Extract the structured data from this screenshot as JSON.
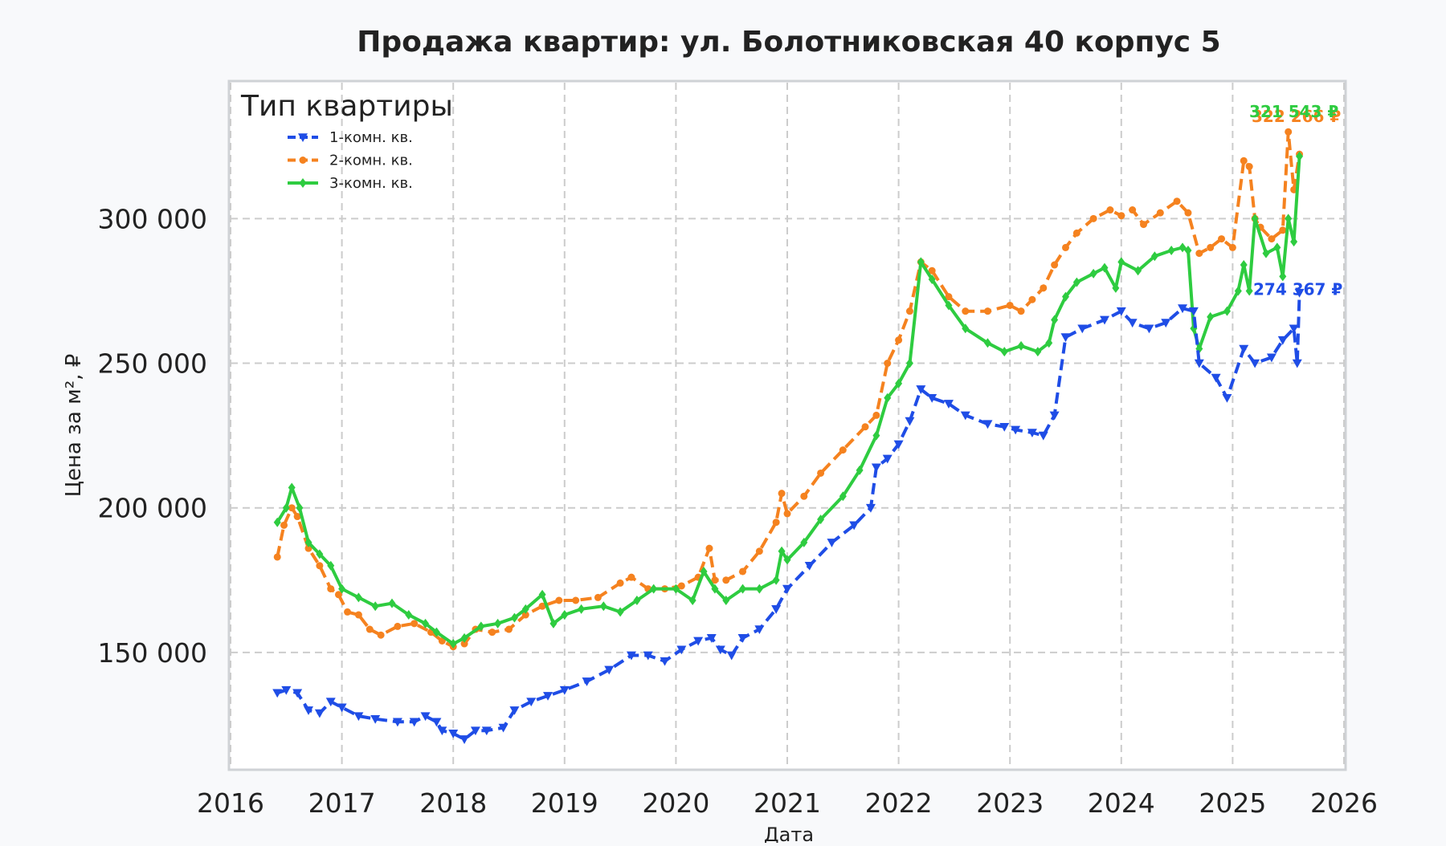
{
  "chart_data": {
    "type": "line",
    "title": "Продажа квартир: ул. Болотниковская 40 корпус 5",
    "xlabel": "Дата",
    "ylabel": "Цена за м², ₽",
    "xlim": [
      2016.0,
      2026.0
    ],
    "ylim": [
      110000,
      347000
    ],
    "xticks": [
      2016,
      2017,
      2018,
      2019,
      2020,
      2021,
      2022,
      2023,
      2024,
      2025,
      2026
    ],
    "yticks": [
      150000,
      200000,
      250000,
      300000
    ],
    "ytick_labels": [
      "150 000",
      "200 000",
      "250 000",
      "300 000"
    ],
    "grid": true,
    "legend": {
      "title": "Тип квартиры",
      "position": "top-left"
    },
    "series": [
      {
        "name": "1-комн. кв.",
        "color": "#1f4de6",
        "line_style": "dashed",
        "marker": "triangle-down",
        "end_label": "274 367 ₽",
        "x": [
          2016.42,
          2016.5,
          2016.6,
          2016.7,
          2016.8,
          2016.9,
          2017.0,
          2017.15,
          2017.3,
          2017.5,
          2017.65,
          2017.75,
          2017.85,
          2017.9,
          2018.0,
          2018.1,
          2018.2,
          2018.3,
          2018.45,
          2018.55,
          2018.7,
          2018.85,
          2019.0,
          2019.2,
          2019.4,
          2019.6,
          2019.75,
          2019.9,
          2020.05,
          2020.2,
          2020.32,
          2020.4,
          2020.5,
          2020.6,
          2020.75,
          2020.9,
          2021.0,
          2021.2,
          2021.4,
          2021.6,
          2021.75,
          2021.8,
          2021.9,
          2022.0,
          2022.1,
          2022.2,
          2022.3,
          2022.45,
          2022.6,
          2022.8,
          2022.95,
          2023.05,
          2023.2,
          2023.3,
          2023.4,
          2023.5,
          2023.65,
          2023.85,
          2024.0,
          2024.1,
          2024.25,
          2024.4,
          2024.55,
          2024.65,
          2024.7,
          2024.85,
          2024.95,
          2025.1,
          2025.2,
          2025.35,
          2025.45,
          2025.55,
          2025.58,
          2025.6
        ],
        "y": [
          136000,
          137000,
          136000,
          130000,
          129000,
          133000,
          131000,
          128000,
          127000,
          126000,
          126000,
          128000,
          126000,
          123000,
          122000,
          120000,
          123000,
          123000,
          124000,
          130000,
          133000,
          135000,
          137000,
          140000,
          144000,
          149000,
          149000,
          147000,
          151000,
          154000,
          155000,
          151000,
          149000,
          155000,
          158000,
          165000,
          172000,
          180000,
          188000,
          194000,
          200000,
          214000,
          217000,
          222000,
          230000,
          241000,
          238000,
          236000,
          232000,
          229000,
          228000,
          227000,
          226000,
          225000,
          232000,
          259000,
          262000,
          265000,
          268000,
          264000,
          262000,
          264000,
          269000,
          268000,
          250000,
          245000,
          238000,
          255000,
          250000,
          252000,
          258000,
          262000,
          250000,
          274367
        ]
      },
      {
        "name": "2-комн. кв.",
        "color": "#f5821f",
        "line_style": "dashed",
        "marker": "circle",
        "end_label": "322 266 ₽",
        "x": [
          2016.42,
          2016.48,
          2016.55,
          2016.6,
          2016.7,
          2016.8,
          2016.9,
          2016.97,
          2017.05,
          2017.15,
          2017.25,
          2017.35,
          2017.5,
          2017.65,
          2017.8,
          2017.9,
          2018.0,
          2018.1,
          2018.2,
          2018.35,
          2018.5,
          2018.65,
          2018.8,
          2018.95,
          2019.1,
          2019.3,
          2019.5,
          2019.6,
          2019.75,
          2019.9,
          2020.05,
          2020.2,
          2020.3,
          2020.35,
          2020.45,
          2020.6,
          2020.75,
          2020.9,
          2020.95,
          2021.0,
          2021.15,
          2021.3,
          2021.5,
          2021.7,
          2021.8,
          2021.9,
          2022.0,
          2022.1,
          2022.2,
          2022.3,
          2022.45,
          2022.6,
          2022.8,
          2023.0,
          2023.1,
          2023.2,
          2023.3,
          2023.4,
          2023.5,
          2023.6,
          2023.75,
          2023.9,
          2024.0,
          2024.1,
          2024.2,
          2024.35,
          2024.5,
          2024.6,
          2024.7,
          2024.8,
          2024.9,
          2025.0,
          2025.1,
          2025.15,
          2025.2,
          2025.25,
          2025.35,
          2025.45,
          2025.5,
          2025.55,
          2025.6
        ],
        "y": [
          183000,
          194000,
          200000,
          197000,
          186000,
          180000,
          172000,
          170000,
          164000,
          163000,
          158000,
          156000,
          159000,
          160000,
          157000,
          154000,
          152000,
          153000,
          158000,
          157000,
          158000,
          163000,
          166000,
          168000,
          168000,
          169000,
          174000,
          176000,
          172000,
          172000,
          173000,
          176000,
          186000,
          175000,
          175000,
          178000,
          185000,
          195000,
          205000,
          198000,
          204000,
          212000,
          220000,
          228000,
          232000,
          250000,
          258000,
          268000,
          285000,
          282000,
          273000,
          268000,
          268000,
          270000,
          268000,
          272000,
          276000,
          284000,
          290000,
          295000,
          300000,
          303000,
          301000,
          303000,
          298000,
          302000,
          306000,
          302000,
          288000,
          290000,
          293000,
          290000,
          320000,
          318000,
          300000,
          297000,
          293000,
          296000,
          330000,
          310000,
          322266
        ]
      },
      {
        "name": "3-комн. кв.",
        "color": "#2ecc40",
        "line_style": "solid",
        "marker": "diamond",
        "end_label": "321 543 ₽",
        "x": [
          2016.42,
          2016.5,
          2016.55,
          2016.62,
          2016.7,
          2016.8,
          2016.9,
          2017.0,
          2017.15,
          2017.3,
          2017.45,
          2017.6,
          2017.75,
          2017.85,
          2018.0,
          2018.1,
          2018.25,
          2018.4,
          2018.55,
          2018.65,
          2018.8,
          2018.9,
          2019.0,
          2019.15,
          2019.35,
          2019.5,
          2019.65,
          2019.8,
          2020.0,
          2020.15,
          2020.25,
          2020.35,
          2020.45,
          2020.6,
          2020.75,
          2020.9,
          2020.95,
          2021.0,
          2021.15,
          2021.3,
          2021.5,
          2021.65,
          2021.8,
          2021.9,
          2022.0,
          2022.1,
          2022.2,
          2022.3,
          2022.45,
          2022.6,
          2022.8,
          2022.95,
          2023.1,
          2023.25,
          2023.35,
          2023.4,
          2023.5,
          2023.6,
          2023.75,
          2023.85,
          2023.95,
          2024.0,
          2024.15,
          2024.3,
          2024.45,
          2024.55,
          2024.6,
          2024.65,
          2024.7,
          2024.8,
          2024.95,
          2025.05,
          2025.1,
          2025.15,
          2025.2,
          2025.3,
          2025.4,
          2025.45,
          2025.5,
          2025.55,
          2025.6
        ],
        "y": [
          195000,
          200000,
          207000,
          200000,
          188000,
          184000,
          180000,
          172000,
          169000,
          166000,
          167000,
          163000,
          160000,
          157000,
          153000,
          155000,
          159000,
          160000,
          162000,
          165000,
          170000,
          160000,
          163000,
          165000,
          166000,
          164000,
          168000,
          172000,
          172000,
          168000,
          178000,
          172000,
          168000,
          172000,
          172000,
          175000,
          185000,
          182000,
          188000,
          196000,
          204000,
          213000,
          225000,
          238000,
          243000,
          250000,
          285000,
          279000,
          270000,
          262000,
          257000,
          254000,
          256000,
          254000,
          257000,
          265000,
          273000,
          278000,
          281000,
          283000,
          276000,
          285000,
          282000,
          287000,
          289000,
          290000,
          289000,
          262000,
          255000,
          266000,
          268000,
          275000,
          284000,
          275000,
          300000,
          288000,
          290000,
          280000,
          300000,
          292000,
          321543
        ]
      }
    ]
  }
}
